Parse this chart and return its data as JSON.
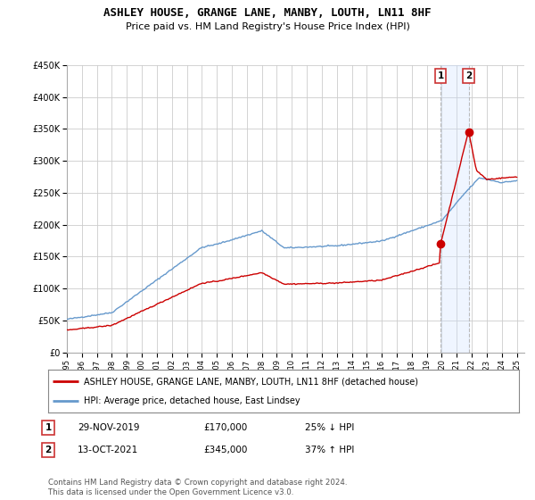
{
  "title": "ASHLEY HOUSE, GRANGE LANE, MANBY, LOUTH, LN11 8HF",
  "subtitle": "Price paid vs. HM Land Registry's House Price Index (HPI)",
  "ylabel_ticks": [
    "£0",
    "£50K",
    "£100K",
    "£150K",
    "£200K",
    "£250K",
    "£300K",
    "£350K",
    "£400K",
    "£450K"
  ],
  "ylim": [
    0,
    450000
  ],
  "xlim_start": 1995.0,
  "xlim_end": 2025.5,
  "legend_line1": "ASHLEY HOUSE, GRANGE LANE, MANBY, LOUTH, LN11 8HF (detached house)",
  "legend_line2": "HPI: Average price, detached house, East Lindsey",
  "transaction1_date": "29-NOV-2019",
  "transaction1_price": "£170,000",
  "transaction1_hpi": "25% ↓ HPI",
  "transaction2_date": "13-OCT-2021",
  "transaction2_price": "£345,000",
  "transaction2_hpi": "37% ↑ HPI",
  "footer": "Contains HM Land Registry data © Crown copyright and database right 2024.\nThis data is licensed under the Open Government Licence v3.0.",
  "line_color_red": "#cc0000",
  "line_color_blue": "#6699cc",
  "marker_color_red": "#cc0000",
  "highlight_color": "#ddeeff",
  "transaction1_x": 2019.91,
  "transaction2_x": 2021.79,
  "transaction1_y": 170000,
  "transaction2_y": 345000,
  "grid_color": "#cccccc",
  "background_color": "#ffffff"
}
